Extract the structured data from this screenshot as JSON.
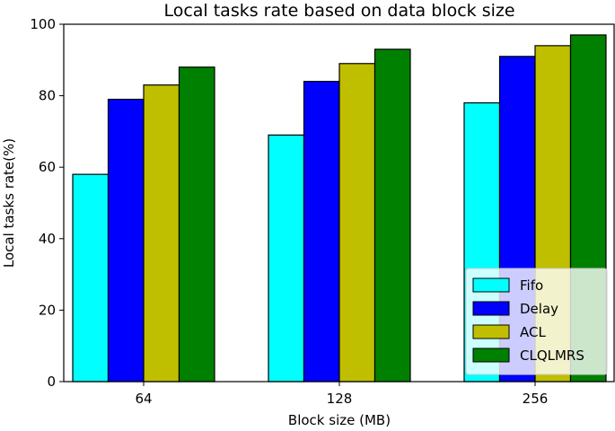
{
  "chart_data": {
    "type": "bar",
    "title": "Local tasks rate based on data block size",
    "xlabel": "Block size (MB)",
    "ylabel": "Local tasks rate(%)",
    "categories": [
      "64",
      "128",
      "256"
    ],
    "ylim": [
      0,
      100
    ],
    "yticks": [
      "0",
      "20",
      "40",
      "60",
      "80",
      "100"
    ],
    "grid": false,
    "legend_position": "lower-right",
    "series": [
      {
        "name": "Fifo",
        "color": "#00ffff",
        "values": [
          58,
          69,
          78
        ]
      },
      {
        "name": "Delay",
        "color": "#0000ff",
        "values": [
          79,
          84,
          91
        ]
      },
      {
        "name": "ACL",
        "color": "#bfbf00",
        "values": [
          83,
          89,
          94
        ]
      },
      {
        "name": "CLQLMRS",
        "color": "#008000",
        "values": [
          88,
          93,
          97
        ]
      }
    ]
  }
}
